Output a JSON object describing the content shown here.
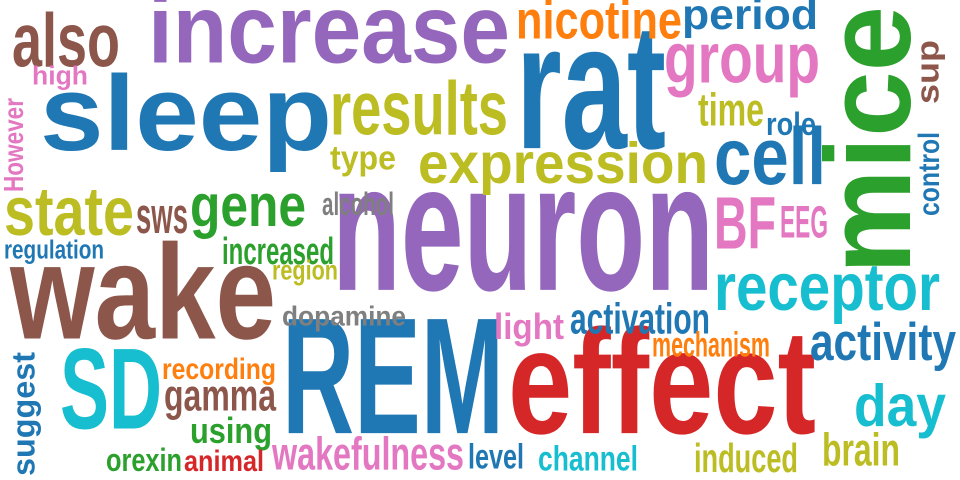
{
  "words": [
    {
      "text": "increase",
      "color": "#9467bd"
    },
    {
      "text": "sleep",
      "color": "#1f77b4"
    },
    {
      "text": "rat",
      "color": "#1f77b4"
    },
    {
      "text": "mice",
      "color": "#2ca02c"
    },
    {
      "text": "neuron",
      "color": "#9467bd"
    },
    {
      "text": "wake",
      "color": "#8c564b"
    },
    {
      "text": "REM",
      "color": "#1f77b4"
    },
    {
      "text": "effect",
      "color": "#d62728"
    },
    {
      "text": "SD",
      "color": "#17becf"
    },
    {
      "text": "also",
      "color": "#8c564b"
    },
    {
      "text": "high",
      "color": "#e377c2"
    },
    {
      "text": "nicotine",
      "color": "#ff7f0e"
    },
    {
      "text": "period",
      "color": "#1f77b4"
    },
    {
      "text": "group",
      "color": "#e377c2"
    },
    {
      "text": "results",
      "color": "#bcbd22"
    },
    {
      "text": "time",
      "color": "#bcbd22"
    },
    {
      "text": "role",
      "color": "#1f77b4"
    },
    {
      "text": "sup",
      "color": "#8c564b"
    },
    {
      "text": "However",
      "color": "#e377c2"
    },
    {
      "text": "cell",
      "color": "#1f77b4"
    },
    {
      "text": "expression",
      "color": "#bcbd22"
    },
    {
      "text": "type",
      "color": "#bcbd22"
    },
    {
      "text": "control",
      "color": "#1f77b4"
    },
    {
      "text": "state",
      "color": "#bcbd22"
    },
    {
      "text": "sws",
      "color": "#8c564b"
    },
    {
      "text": "gene",
      "color": "#2ca02c"
    },
    {
      "text": "alcohol",
      "color": "#7f7f7f"
    },
    {
      "text": "BF",
      "color": "#e377c2"
    },
    {
      "text": "EEG",
      "color": "#e377c2"
    },
    {
      "text": "regulation",
      "color": "#1f77b4"
    },
    {
      "text": "increased",
      "color": "#2ca02c"
    },
    {
      "text": "region",
      "color": "#bcbd22"
    },
    {
      "text": "receptor",
      "color": "#17becf"
    },
    {
      "text": "dopamine",
      "color": "#7f7f7f"
    },
    {
      "text": "light",
      "color": "#e377c2"
    },
    {
      "text": "activation",
      "color": "#1f77b4"
    },
    {
      "text": "mechanism",
      "color": "#ff7f0e"
    },
    {
      "text": "activity",
      "color": "#1f77b4"
    },
    {
      "text": "suggest",
      "color": "#1f77b4"
    },
    {
      "text": "recording",
      "color": "#ff7f0e"
    },
    {
      "text": "gamma",
      "color": "#8c564b"
    },
    {
      "text": "using",
      "color": "#2ca02c"
    },
    {
      "text": "day",
      "color": "#17becf"
    },
    {
      "text": "wakefulness",
      "color": "#e377c2"
    },
    {
      "text": "level",
      "color": "#1f77b4"
    },
    {
      "text": "channel",
      "color": "#17becf"
    },
    {
      "text": "induced",
      "color": "#bcbd22"
    },
    {
      "text": "brain",
      "color": "#bcbd22"
    },
    {
      "text": "orexin",
      "color": "#2ca02c"
    },
    {
      "text": "animal",
      "color": "#d62728"
    }
  ]
}
